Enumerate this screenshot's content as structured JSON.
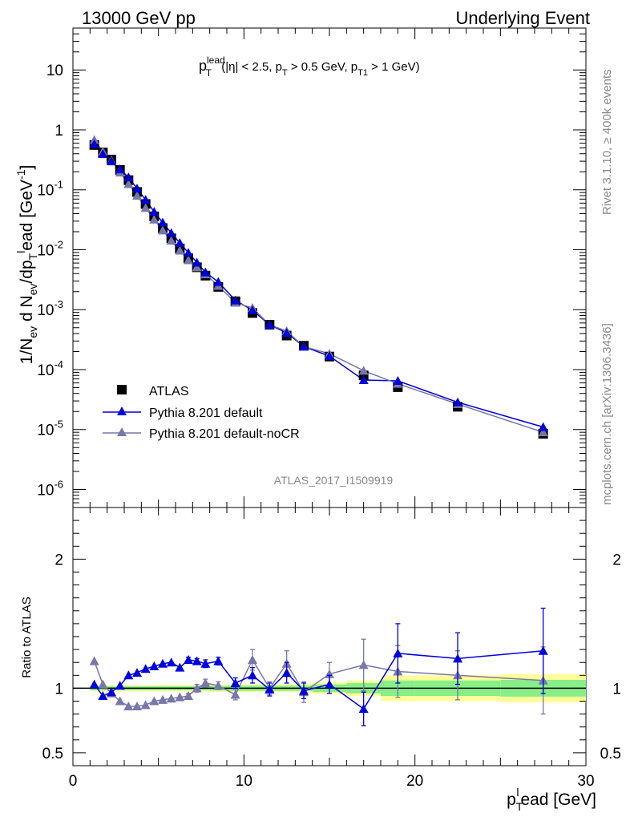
{
  "header": {
    "left": "13000 GeV pp",
    "right": "Underlying Event"
  },
  "side": {
    "rivet": "Rivet 3.1.10, ≥ 400k events",
    "mcplots": "mcplots.cern.ch [arXiv:1306.3436]"
  },
  "chart_data": [
    {
      "type": "scatter",
      "title": {
        "p": "p",
        "sup": "lead",
        "sub": "T",
        "rest1": " (|η| < 2.5, p",
        "sub2": "T",
        "rest2": " > 0.5 GeV, p",
        "sub3": "T1",
        "rest3": " > 1 GeV)"
      },
      "analysis": "ATLAS_2017_I1509919",
      "ylabel": "1/N_ev d N_ev/dp_T^lead [GeV^-1]",
      "ylabel_parts": {
        "a": "1/N",
        "a_sub": "ev",
        "b": " d N",
        "b_sub": "ev",
        "c": "/dp",
        "c_sub": "T",
        "c_sup": "l",
        "d": "ead [GeV",
        "d_sup": "-1",
        "e": "]"
      },
      "yscale": "log",
      "xlim": [
        0,
        30
      ],
      "ylim": [
        5e-07,
        50
      ],
      "yticks": [
        {
          "m": "10",
          "e": "-6",
          "v": 1e-06
        },
        {
          "m": "10",
          "e": "-5",
          "v": 1e-05
        },
        {
          "m": "10",
          "e": "-4",
          "v": 0.0001
        },
        {
          "m": "10",
          "e": "-3",
          "v": 0.001
        },
        {
          "m": "10",
          "e": "-2",
          "v": 0.01
        },
        {
          "m": "10",
          "e": "-1",
          "v": 0.1
        },
        {
          "m": "1",
          "e": "",
          "v": 1
        },
        {
          "m": "10",
          "e": "",
          "v": 10
        }
      ],
      "legend_position": "bottom-left",
      "x": [
        1.25,
        1.75,
        2.25,
        2.75,
        3.25,
        3.75,
        4.25,
        4.75,
        5.25,
        5.75,
        6.25,
        6.75,
        7.25,
        7.75,
        8.5,
        9.5,
        10.5,
        11.5,
        12.5,
        13.5,
        15.0,
        17.0,
        19.0,
        22.5,
        27.5
      ],
      "series": [
        {
          "name": "ATLAS",
          "color": "#000000",
          "marker": "square",
          "values": [
            0.56,
            0.42,
            0.32,
            0.215,
            0.145,
            0.092,
            0.058,
            0.036,
            0.023,
            0.0155,
            0.0105,
            0.0072,
            0.0051,
            0.0037,
            0.0024,
            0.00138,
            0.00088,
            0.00056,
            0.00037,
            0.00025,
            0.000165,
            8e-05,
            5.1e-05,
            2.4e-05,
            8.5e-06
          ]
        },
        {
          "name": "Pythia 8.201 default",
          "color": "#0000dd",
          "marker": "triangle",
          "values": [
            0.58,
            0.395,
            0.3,
            0.22,
            0.162,
            0.105,
            0.068,
            0.043,
            0.0285,
            0.019,
            0.013,
            0.0089,
            0.0061,
            0.0042,
            0.0029,
            0.00143,
            0.00098,
            0.00056,
            0.00041,
            0.000243,
            0.000168,
            6.7e-05,
            6.5e-05,
            2.85e-05,
            1.1e-05
          ]
        },
        {
          "name": "Pythia 8.201 default-noCR",
          "color": "#7777aa",
          "marker": "triangle",
          "values": [
            0.68,
            0.435,
            0.31,
            0.195,
            0.125,
            0.08,
            0.05,
            0.032,
            0.021,
            0.0142,
            0.0097,
            0.0067,
            0.0051,
            0.0039,
            0.0025,
            0.00131,
            0.00107,
            0.00056,
            0.00044,
            0.000243,
            0.000184,
            9.6e-05,
            5.8e-05,
            2.66e-05,
            9e-06
          ]
        }
      ]
    },
    {
      "type": "scatter",
      "ylabel": "Ratio to ATLAS",
      "xlabel": "p_T^lead [GeV]",
      "xlabel_parts": {
        "a": "p",
        "a_sub": "T",
        "a_sup": "l",
        "b": "ead [GeV]"
      },
      "xlim": [
        0,
        30
      ],
      "ylim": [
        0.4,
        2.4
      ],
      "xticks": [
        "0",
        "10",
        "20",
        "30"
      ],
      "yticks": [
        "0.5",
        "1",
        "2"
      ],
      "band_edges": [
        1.0,
        1.5,
        2.0,
        2.5,
        3.0,
        3.5,
        4.0,
        4.5,
        5.0,
        5.5,
        6.0,
        6.5,
        7.0,
        7.5,
        8.0,
        9.0,
        10.0,
        11.0,
        12.0,
        13.0,
        14.0,
        16.0,
        18.0,
        20.0,
        25.0,
        30.0
      ],
      "band_stat": [
        0.015,
        0.015,
        0.015,
        0.015,
        0.015,
        0.015,
        0.015,
        0.015,
        0.015,
        0.015,
        0.015,
        0.015,
        0.015,
        0.015,
        0.018,
        0.02,
        0.02,
        0.02,
        0.02,
        0.02,
        0.03,
        0.04,
        0.06,
        0.06,
        0.065
      ],
      "band_total": [
        0.025,
        0.025,
        0.025,
        0.025,
        0.025,
        0.025,
        0.025,
        0.025,
        0.025,
        0.025,
        0.025,
        0.025,
        0.025,
        0.025,
        0.028,
        0.03,
        0.03,
        0.03,
        0.03,
        0.035,
        0.045,
        0.06,
        0.1,
        0.1,
        0.11
      ],
      "series": [
        {
          "name": "Pythia 8.201 default",
          "color": "#0000dd",
          "values": [
            1.03,
            0.94,
            0.97,
            1.02,
            1.1,
            1.12,
            1.15,
            1.17,
            1.19,
            1.2,
            1.16,
            1.22,
            1.21,
            1.19,
            1.21,
            1.04,
            1.1,
            0.99,
            1.12,
            0.98,
            1.03,
            0.84,
            1.27,
            1.23,
            1.29
          ],
          "err": [
            0.01,
            0.01,
            0.01,
            0.01,
            0.01,
            0.01,
            0.01,
            0.01,
            0.01,
            0.01,
            0.01,
            0.02,
            0.02,
            0.03,
            0.03,
            0.04,
            0.06,
            0.05,
            0.08,
            0.06,
            0.07,
            0.13,
            0.23,
            0.2,
            0.33
          ]
        },
        {
          "name": "Pythia 8.201 default-noCR",
          "color": "#7777aa",
          "values": [
            1.21,
            1.03,
            0.96,
            0.9,
            0.86,
            0.86,
            0.87,
            0.9,
            0.91,
            0.92,
            0.93,
            0.94,
            1.0,
            1.04,
            1.02,
            0.95,
            1.22,
            1.0,
            1.19,
            0.97,
            1.11,
            1.18,
            1.13,
            1.1,
            1.06
          ],
          "err": [
            0.01,
            0.01,
            0.01,
            0.01,
            0.01,
            0.01,
            0.01,
            0.01,
            0.01,
            0.01,
            0.01,
            0.02,
            0.03,
            0.03,
            0.03,
            0.04,
            0.08,
            0.05,
            0.1,
            0.08,
            0.09,
            0.2,
            0.2,
            0.19,
            0.26
          ]
        }
      ]
    }
  ]
}
